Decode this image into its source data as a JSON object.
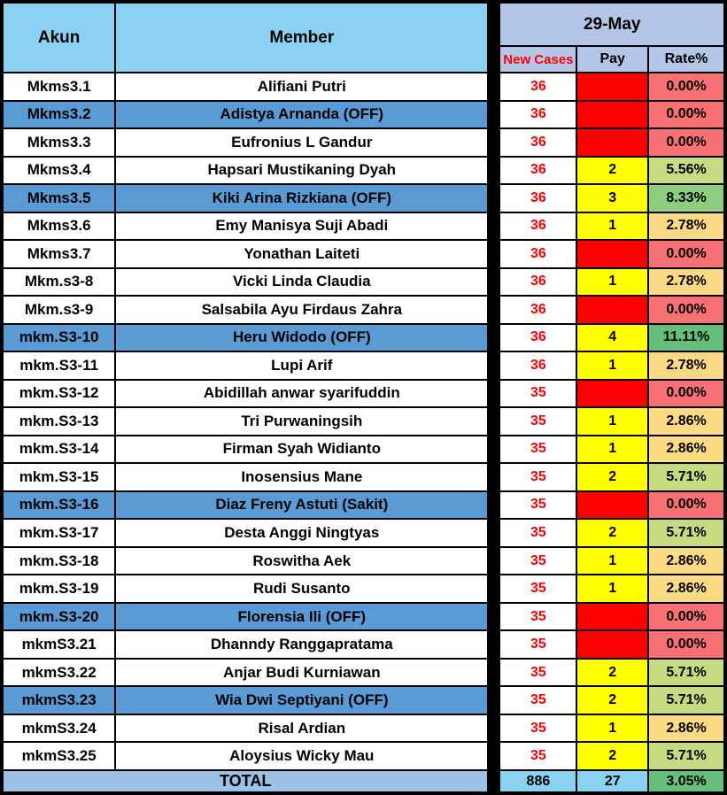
{
  "header": {
    "akun_label": "Akun",
    "member_label": "Member",
    "date_label": "29-May",
    "new_cases_label": "New Cases",
    "pay_label": "Pay",
    "rate_label": "Rate%"
  },
  "colors": {
    "header_sky_blue": "#8BD2F2",
    "date_band_lavender": "#B4C6E7",
    "off_row_blue": "#5B9BD5",
    "pay_filled_yellow": "#FFFF00",
    "pay_empty_red": "#FF0000",
    "new_cases_text_red": "#FF0000",
    "total_label_bg": "#9DC1E6",
    "total_value_bg": "#8BD2F2",
    "rate_scale": {
      "0.00%": "#F67074",
      "2.78%": "#FBD984",
      "2.86%": "#FBDC84",
      "5.56%": "#C8DB82",
      "5.71%": "#C6DA81",
      "8.33%": "#8ECD7E",
      "11.11%": "#66BE7B",
      "3.05%": "#66BE7B"
    }
  },
  "rows": [
    {
      "akun": "Mkms3.1",
      "member": "Alifiani Putri",
      "off": false,
      "new_cases": "36",
      "pay": "",
      "rate": "0.00%"
    },
    {
      "akun": "Mkms3.2",
      "member": "Adistya Arnanda (OFF)",
      "off": true,
      "new_cases": "36",
      "pay": "",
      "rate": "0.00%"
    },
    {
      "akun": "Mkms3.3",
      "member": "Eufronius L Gandur",
      "off": false,
      "new_cases": "36",
      "pay": "",
      "rate": "0.00%"
    },
    {
      "akun": "Mkms3.4",
      "member": "Hapsari Mustikaning Dyah",
      "off": false,
      "new_cases": "36",
      "pay": "2",
      "rate": "5.56%"
    },
    {
      "akun": "Mkms3.5",
      "member": "Kiki Arina Rizkiana (OFF)",
      "off": true,
      "new_cases": "36",
      "pay": "3",
      "rate": "8.33%"
    },
    {
      "akun": "Mkms3.6",
      "member": "Emy Manisya Suji Abadi",
      "off": false,
      "new_cases": "36",
      "pay": "1",
      "rate": "2.78%"
    },
    {
      "akun": "Mkms3.7",
      "member": "Yonathan Laiteti",
      "off": false,
      "new_cases": "36",
      "pay": "",
      "rate": "0.00%"
    },
    {
      "akun": "Mkm.s3-8",
      "member": "Vicki Linda Claudia",
      "off": false,
      "new_cases": "36",
      "pay": "1",
      "rate": "2.78%"
    },
    {
      "akun": "Mkm.s3-9",
      "member": "Salsabila Ayu Firdaus Zahra",
      "off": false,
      "new_cases": "36",
      "pay": "",
      "rate": "0.00%"
    },
    {
      "akun": "mkm.S3-10",
      "member": "Heru Widodo (OFF)",
      "off": true,
      "new_cases": "36",
      "pay": "4",
      "rate": "11.11%"
    },
    {
      "akun": "mkm.S3-11",
      "member": "Lupi Arif",
      "off": false,
      "new_cases": "36",
      "pay": "1",
      "rate": "2.78%"
    },
    {
      "akun": "mkm.S3-12",
      "member": "Abidillah anwar syarifuddin",
      "off": false,
      "new_cases": "35",
      "pay": "",
      "rate": "0.00%"
    },
    {
      "akun": "mkm.S3-13",
      "member": "Tri Purwaningsih",
      "off": false,
      "new_cases": "35",
      "pay": "1",
      "rate": "2.86%"
    },
    {
      "akun": "mkm.S3-14",
      "member": "Firman Syah Widianto",
      "off": false,
      "new_cases": "35",
      "pay": "1",
      "rate": "2.86%"
    },
    {
      "akun": "mkm.S3-15",
      "member": "Inosensius Mane",
      "off": false,
      "new_cases": "35",
      "pay": "2",
      "rate": "5.71%"
    },
    {
      "akun": "mkm.S3-16",
      "member": "Diaz Freny Astuti (Sakit)",
      "off": true,
      "new_cases": "35",
      "pay": "",
      "rate": "0.00%"
    },
    {
      "akun": "mkm.S3-17",
      "member": "Desta Anggi Ningtyas",
      "off": false,
      "new_cases": "35",
      "pay": "2",
      "rate": "5.71%"
    },
    {
      "akun": "mkm.S3-18",
      "member": "Roswitha Aek",
      "off": false,
      "new_cases": "35",
      "pay": "1",
      "rate": "2.86%"
    },
    {
      "akun": "mkm.S3-19",
      "member": "Rudi Susanto",
      "off": false,
      "new_cases": "35",
      "pay": "1",
      "rate": "2.86%"
    },
    {
      "akun": "mkm.S3-20",
      "member": "Florensia Ili (OFF)",
      "off": true,
      "new_cases": "35",
      "pay": "",
      "rate": "0.00%"
    },
    {
      "akun": "mkmS3.21",
      "member": "Dhanndy Ranggapratama",
      "off": false,
      "new_cases": "35",
      "pay": "",
      "rate": "0.00%"
    },
    {
      "akun": "mkmS3.22",
      "member": "Anjar Budi Kurniawan",
      "off": false,
      "new_cases": "35",
      "pay": "2",
      "rate": "5.71%"
    },
    {
      "akun": "mkmS3.23",
      "member": "Wia Dwi Septiyani (OFF)",
      "off": true,
      "new_cases": "35",
      "pay": "2",
      "rate": "5.71%"
    },
    {
      "akun": "mkmS3.24",
      "member": "Risal Ardian",
      "off": false,
      "new_cases": "35",
      "pay": "1",
      "rate": "2.86%"
    },
    {
      "akun": "mkmS3.25",
      "member": "Aloysius Wicky Mau",
      "off": false,
      "new_cases": "35",
      "pay": "2",
      "rate": "5.71%"
    }
  ],
  "total": {
    "label": "TOTAL",
    "new_cases": "886",
    "pay": "27",
    "rate": "3.05%"
  }
}
